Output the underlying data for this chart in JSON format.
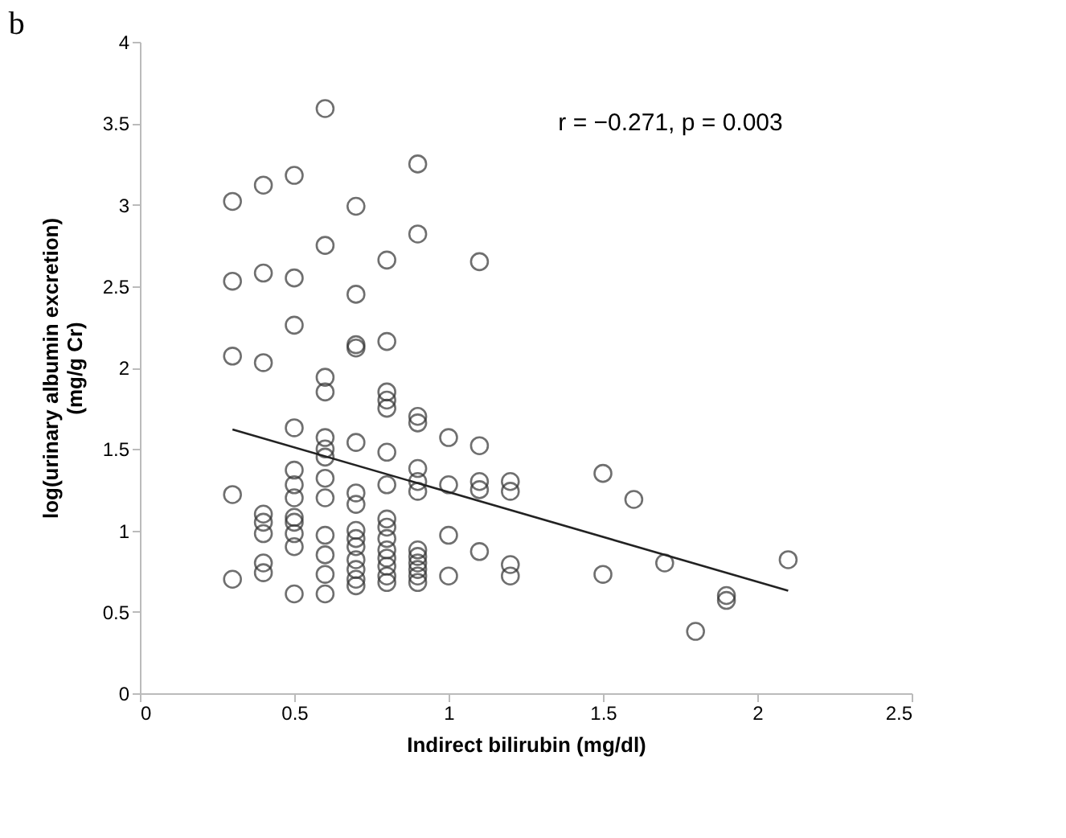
{
  "chart_data": {
    "type": "scatter",
    "title": "b",
    "xlabel": "Indirect bilirubin (mg/dl)",
    "ylabel": "log(urinary albumin excretion)\n(mg/g Cr)",
    "xlim": [
      0,
      2.5
    ],
    "xticks": [
      0,
      0.5,
      1,
      1.5,
      2,
      2.5
    ],
    "ylim": [
      0,
      4
    ],
    "yticks": [
      0,
      0.5,
      1,
      1.5,
      2,
      2.5,
      3,
      3.5,
      4
    ],
    "grid": false,
    "marker": "circle",
    "annotations": [
      "r = −0.271, p = 0.003"
    ],
    "series": [
      {
        "color": "#333333",
        "x": [
          0.3,
          0.3,
          0.3,
          0.3,
          0.3,
          0.4,
          0.4,
          0.4,
          0.4,
          0.4,
          0.4,
          0.4,
          0.4,
          0.5,
          0.5,
          0.5,
          0.5,
          0.5,
          0.5,
          0.5,
          0.5,
          0.5,
          0.5,
          0.5,
          0.5,
          0.6,
          0.6,
          0.6,
          0.6,
          0.6,
          0.6,
          0.6,
          0.6,
          0.6,
          0.6,
          0.6,
          0.6,
          0.6,
          0.7,
          0.7,
          0.7,
          0.7,
          0.7,
          0.7,
          0.7,
          0.7,
          0.7,
          0.7,
          0.7,
          0.7,
          0.7,
          0.7,
          0.8,
          0.8,
          0.8,
          0.8,
          0.8,
          0.8,
          0.8,
          0.8,
          0.8,
          0.8,
          0.8,
          0.8,
          0.8,
          0.8,
          0.8,
          0.9,
          0.9,
          0.9,
          0.9,
          0.9,
          0.9,
          0.9,
          0.9,
          0.9,
          0.9,
          0.9,
          0.9,
          0.9,
          1.0,
          1.0,
          1.0,
          1.0,
          1.1,
          1.1,
          1.1,
          1.1,
          1.1,
          1.2,
          1.2,
          1.2,
          1.2,
          1.5,
          1.5,
          1.6,
          1.7,
          1.8,
          1.9,
          1.9,
          2.1
        ],
        "values": [
          3.02,
          2.53,
          2.07,
          1.22,
          0.7,
          3.12,
          2.58,
          2.03,
          1.1,
          1.05,
          0.98,
          0.8,
          0.74,
          3.18,
          2.55,
          2.26,
          1.63,
          1.37,
          1.28,
          1.2,
          1.08,
          1.05,
          0.98,
          0.9,
          0.61,
          3.59,
          2.75,
          1.94,
          1.85,
          1.57,
          1.5,
          1.45,
          1.32,
          1.2,
          0.97,
          0.85,
          0.73,
          0.61,
          2.99,
          2.45,
          2.14,
          2.12,
          1.54,
          1.23,
          1.16,
          1.0,
          0.95,
          0.9,
          0.82,
          0.76,
          0.7,
          0.66,
          2.66,
          2.16,
          1.85,
          1.8,
          1.75,
          1.48,
          1.28,
          1.07,
          1.02,
          0.95,
          0.88,
          0.83,
          0.78,
          0.72,
          0.68,
          3.25,
          2.82,
          1.7,
          1.66,
          1.38,
          1.3,
          1.24,
          0.88,
          0.84,
          0.8,
          0.76,
          0.72,
          0.68,
          1.57,
          1.28,
          0.97,
          0.72,
          2.65,
          1.52,
          1.3,
          1.25,
          0.87,
          1.3,
          1.24,
          0.79,
          0.72,
          1.35,
          0.73,
          1.19,
          0.8,
          0.38,
          0.6,
          0.57,
          0.82
        ]
      },
      {
        "type": "line",
        "color": "#222222",
        "marker": "none",
        "line_style": "solid",
        "x": [
          0.3,
          2.1
        ],
        "values": [
          1.62,
          0.63
        ]
      }
    ]
  }
}
